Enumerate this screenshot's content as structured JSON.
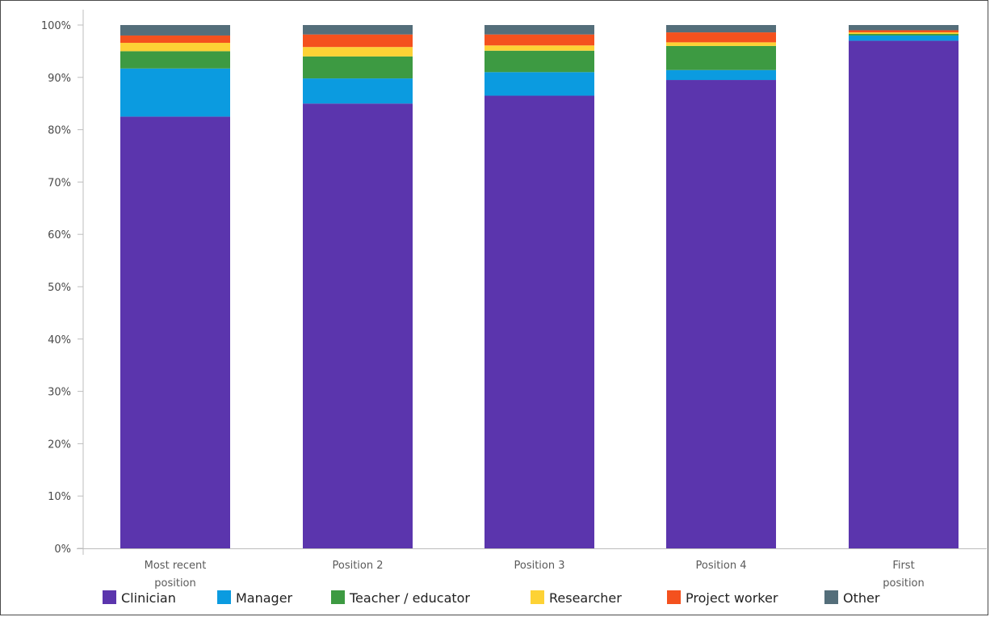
{
  "chart_data": {
    "type": "bar",
    "stacked": true,
    "categories": [
      "Most recent position",
      "Position 2",
      "Position 3",
      "Position 4",
      "First position"
    ],
    "y_ticks": [
      "0%",
      "10%",
      "20%",
      "30%",
      "40%",
      "50%",
      "60%",
      "70%",
      "80%",
      "90%",
      "100%"
    ],
    "ylim": [
      0,
      100
    ],
    "grid": false,
    "legend_position": "bottom",
    "series": [
      {
        "name": "Clinician",
        "color": "#5b35ad",
        "values": [
          82.5,
          85.0,
          86.5,
          89.5,
          97.0
        ]
      },
      {
        "name": "Manager",
        "color": "#0b9be0",
        "values": [
          9.2,
          4.8,
          4.5,
          1.9,
          1.0
        ]
      },
      {
        "name": "Teacher / educator",
        "color": "#3d9a42",
        "values": [
          3.3,
          4.2,
          4.1,
          4.6,
          0.3
        ]
      },
      {
        "name": "Researcher",
        "color": "#fdd235",
        "values": [
          1.6,
          1.8,
          1.0,
          0.7,
          0.3
        ]
      },
      {
        "name": "Project worker",
        "color": "#f4511e",
        "values": [
          1.4,
          2.4,
          2.1,
          1.9,
          0.4
        ]
      },
      {
        "name": "Other",
        "color": "#546e7a",
        "values": [
          2.0,
          1.8,
          1.8,
          1.4,
          1.0
        ]
      }
    ]
  }
}
